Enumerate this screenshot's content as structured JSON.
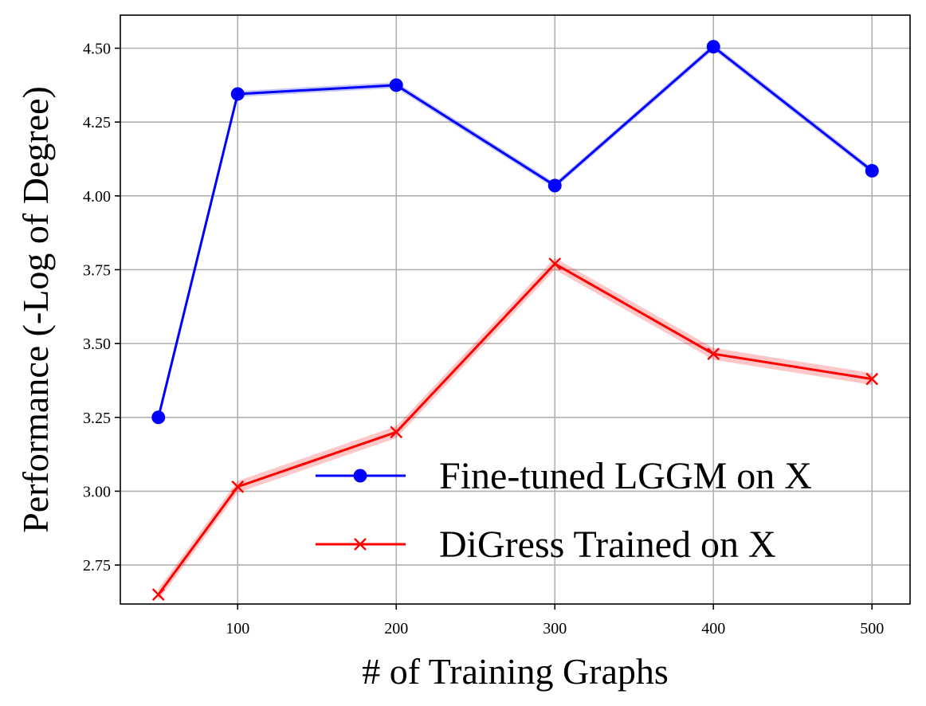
{
  "chart_data": {
    "type": "line",
    "title": "",
    "xlabel": "# of Training Graphs",
    "ylabel": "Performance (-Log of Degree)",
    "xlim": [
      26,
      524
    ],
    "ylim": [
      2.618,
      4.612
    ],
    "xticks": [
      100,
      200,
      300,
      400,
      500
    ],
    "xtick_labels": [
      "100",
      "200",
      "300",
      "400",
      "500"
    ],
    "yticks": [
      2.75,
      3.0,
      3.25,
      3.5,
      3.75,
      4.0,
      4.25,
      4.5
    ],
    "ytick_labels": [
      "2.75",
      "3.00",
      "3.25",
      "3.50",
      "3.75",
      "4.00",
      "4.25",
      "4.50"
    ],
    "grid": true,
    "legend_position": "lower-right",
    "x": [
      50,
      100,
      200,
      300,
      400,
      500
    ],
    "series": [
      {
        "name": "Fine-tuned LGGM on X",
        "color": "#0000ff",
        "marker": "circle",
        "values": [
          3.25,
          4.345,
          4.375,
          4.035,
          4.505,
          4.085
        ],
        "band": 0.01
      },
      {
        "name": "DiGress Trained on X",
        "color": "#ff0000",
        "marker": "x",
        "values": [
          2.65,
          3.015,
          3.2,
          3.77,
          3.465,
          3.38
        ],
        "band": 0.02
      }
    ]
  }
}
